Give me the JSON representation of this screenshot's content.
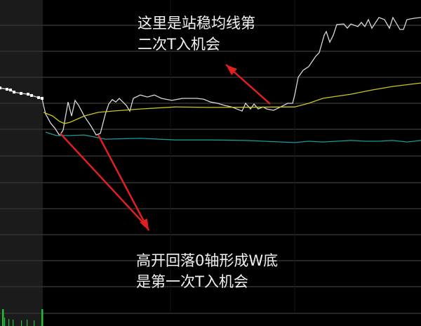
{
  "chart_data": {
    "type": "line",
    "title": "",
    "xlabel": "",
    "ylabel": "",
    "grid": true,
    "x": [
      0,
      10,
      15,
      20,
      30,
      40,
      45,
      55,
      60,
      62,
      65,
      72,
      78,
      85,
      90,
      97,
      102,
      107,
      112,
      120,
      130,
      137,
      143,
      150,
      155,
      160,
      165,
      170,
      180,
      185,
      190,
      200,
      210,
      220,
      230,
      245,
      260,
      280,
      290,
      300,
      310,
      320,
      330,
      345,
      350,
      357,
      362,
      368,
      375,
      380,
      390,
      400,
      410,
      417,
      420,
      425,
      432,
      440,
      450,
      455,
      462,
      465,
      470,
      475,
      480,
      490,
      495,
      500,
      510,
      515,
      520,
      525,
      530,
      540,
      548,
      555,
      560,
      570,
      575,
      580,
      590,
      600
    ],
    "series": [
      {
        "role": "price",
        "color": "#d8d8d8",
        "values": [
          1.59,
          1.54,
          1.51,
          1.43,
          1.38,
          1.35,
          1.3,
          1.22,
          1.19,
          0.92,
          0.59,
          0.24,
          0.05,
          -0.24,
          -0.03,
          1.05,
          0.51,
          1.11,
          0.92,
          0.51,
          0.11,
          -0.22,
          -0.16,
          0.57,
          0.97,
          1.14,
          1.05,
          1.19,
          0.92,
          0.7,
          1.19,
          1.32,
          1.24,
          1.32,
          1.19,
          1.11,
          1.19,
          1.19,
          1.16,
          1.05,
          1.0,
          0.92,
          0.86,
          0.7,
          1.0,
          0.78,
          0.97,
          0.78,
          0.86,
          0.78,
          0.73,
          0.86,
          1.0,
          1.0,
          1.32,
          2.0,
          2.27,
          2.41,
          2.81,
          2.95,
          3.62,
          3.76,
          3.35,
          3.62,
          4.03,
          4.05,
          3.89,
          4.05,
          3.95,
          4.11,
          3.95,
          4.22,
          3.89,
          4.3,
          4.22,
          3.89,
          4.3,
          3.84,
          3.84,
          4.22,
          4.27,
          4.3
        ]
      },
      {
        "role": "average",
        "color": "#c8c820",
        "x": [
          62,
          75,
          85,
          92,
          100,
          120,
          140,
          160,
          200,
          250,
          300,
          420,
          440,
          460,
          480,
          500,
          530,
          560,
          600
        ],
        "values": [
          0.65,
          0.51,
          0.3,
          0.22,
          0.27,
          0.51,
          0.65,
          0.7,
          0.78,
          0.86,
          0.84,
          0.86,
          1.0,
          1.19,
          1.27,
          1.35,
          1.51,
          1.65,
          1.78
        ]
      },
      {
        "role": "indicator",
        "color": "#1a9a9a",
        "x": [
          65,
          80,
          100,
          120,
          150,
          200,
          250,
          300,
          350,
          420,
          440,
          460,
          480,
          500,
          520,
          540,
          560,
          580,
          600
        ],
        "values": [
          -0.11,
          -0.24,
          -0.24,
          -0.22,
          -0.38,
          -0.35,
          -0.41,
          -0.41,
          -0.43,
          -0.51,
          -0.46,
          -0.49,
          -0.46,
          -0.43,
          -0.46,
          -0.46,
          -0.43,
          -0.49,
          -0.43
        ]
      }
    ],
    "annotations": [
      {
        "lines": [
          "这里是站稳均线第",
          "二次T入机会"
        ]
      },
      {
        "lines": [
          "高开回落0轴形成W底",
          "是第一次T入机会"
        ]
      }
    ],
    "colors": {
      "arrow": "#e02020",
      "grid": "#333333",
      "premarket_bg": "#1b1b1b",
      "volume": "#1fbf3a"
    }
  }
}
